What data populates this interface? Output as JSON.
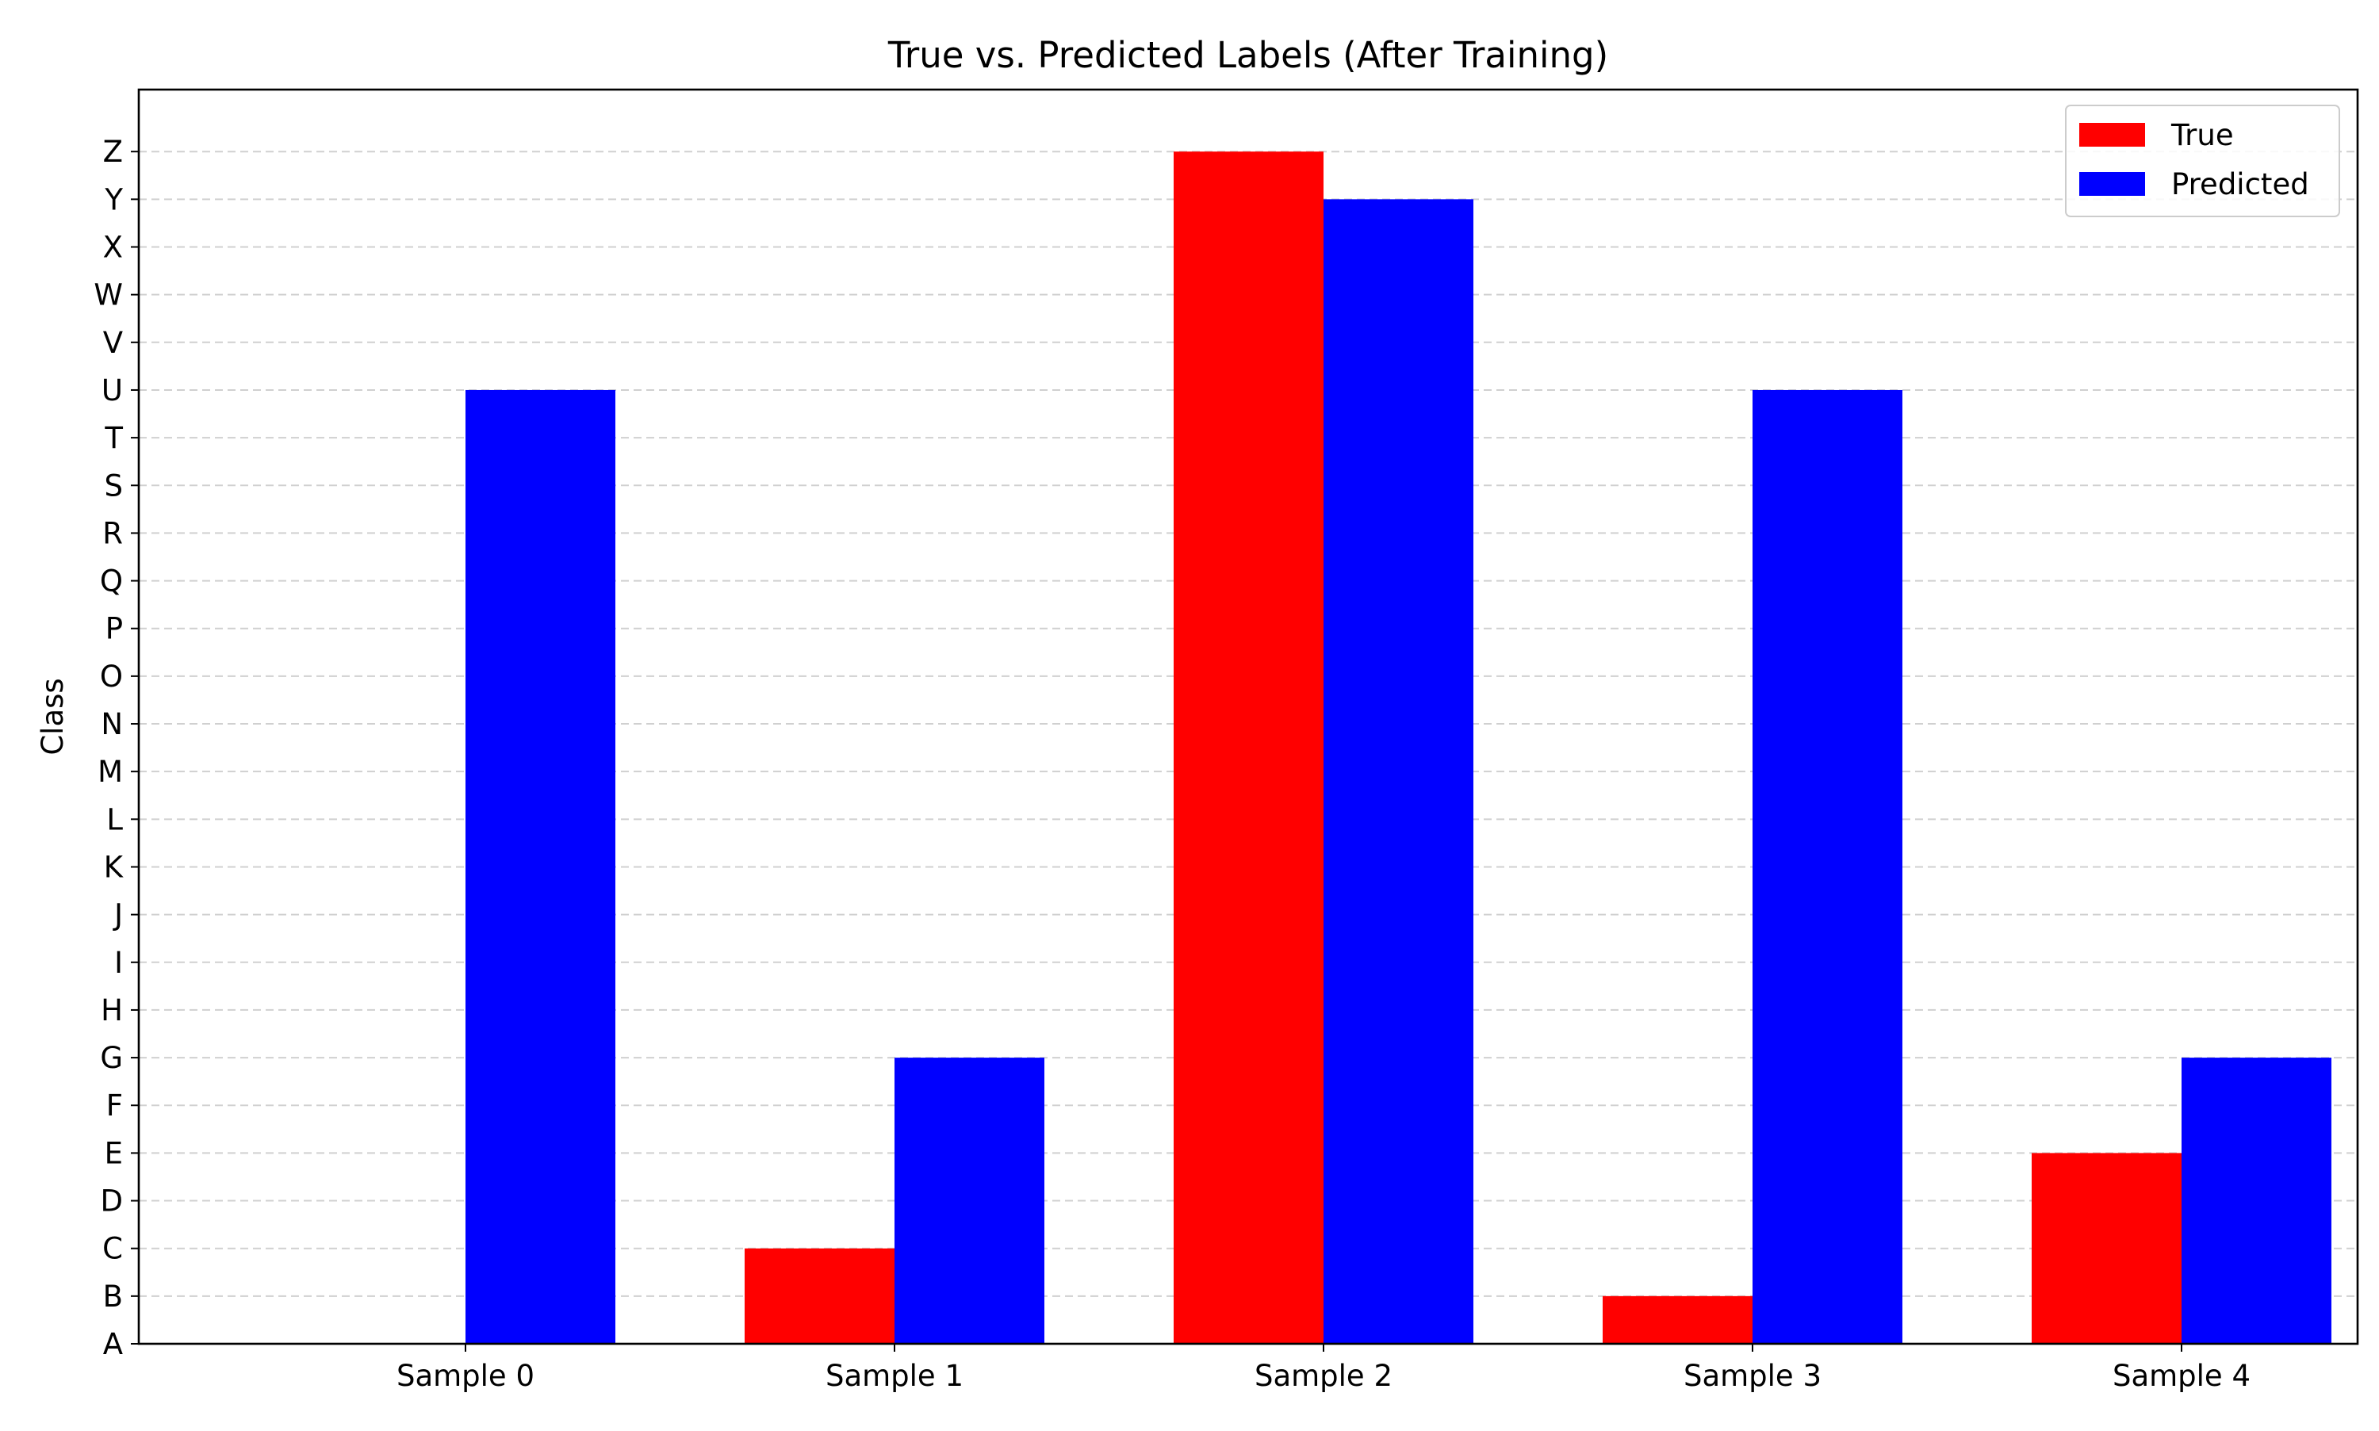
{
  "chart_data": {
    "type": "bar",
    "title": "True vs. Predicted Labels (After Training)",
    "xlabel": "",
    "ylabel": "Class",
    "categories": [
      "Sample 0",
      "Sample 1",
      "Sample 2",
      "Sample 3",
      "Sample 4"
    ],
    "y_tick_labels": [
      "A",
      "B",
      "C",
      "D",
      "E",
      "F",
      "G",
      "H",
      "I",
      "J",
      "K",
      "L",
      "M",
      "N",
      "O",
      "P",
      "Q",
      "R",
      "S",
      "T",
      "U",
      "V",
      "W",
      "X",
      "Y",
      "Z"
    ],
    "ylim": [
      0,
      26.3
    ],
    "series": [
      {
        "name": "True",
        "color": "#ff0000",
        "values": [
          0,
          2,
          25,
          1,
          4
        ]
      },
      {
        "name": "Predicted",
        "color": "#0000ff",
        "values": [
          20,
          6,
          24,
          20,
          6
        ]
      }
    ],
    "grid": {
      "y": true,
      "x": false,
      "style": "dashed"
    },
    "legend_position": "top-right"
  }
}
